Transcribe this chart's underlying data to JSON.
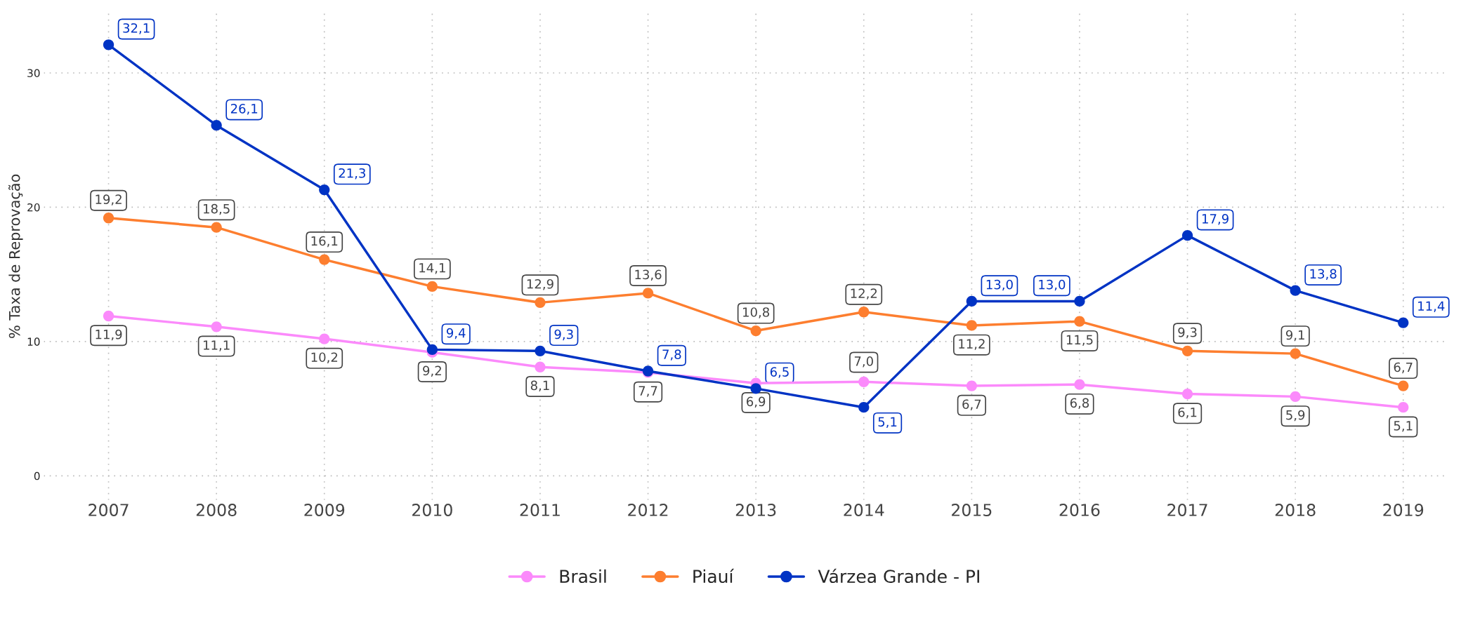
{
  "chart_data": {
    "type": "line",
    "ylabel": "% Taxa de Reprovação",
    "categories": [
      "2007",
      "2008",
      "2009",
      "2010",
      "2011",
      "2012",
      "2013",
      "2014",
      "2015",
      "2016",
      "2017",
      "2018",
      "2019"
    ],
    "series": [
      {
        "name": "Brasil",
        "color": "#fb8afb",
        "values": [
          11.9,
          11.1,
          10.2,
          9.2,
          8.1,
          7.7,
          6.9,
          7.0,
          6.7,
          6.8,
          6.1,
          5.9,
          5.1
        ],
        "value_labels": [
          "11,9",
          "11,1",
          "10,2",
          "9,2",
          "8,1",
          "7,7",
          "6,9",
          "7,0",
          "6,7",
          "6,8",
          "6,1",
          "5,9",
          "5,1"
        ]
      },
      {
        "name": "Piauí",
        "color": "#fd7e2f",
        "values": [
          19.2,
          18.5,
          16.1,
          14.1,
          12.9,
          13.6,
          10.8,
          12.2,
          11.2,
          11.5,
          9.3,
          9.1,
          6.7
        ],
        "value_labels": [
          "19,2",
          "18,5",
          "16,1",
          "14,1",
          "12,9",
          "13,6",
          "10,8",
          "12,2",
          "11,2",
          "11,5",
          "9,3",
          "9,1",
          "6,7"
        ]
      },
      {
        "name": "Várzea Grande - PI",
        "color": "#0033c4",
        "values": [
          32.1,
          26.1,
          21.3,
          9.4,
          9.3,
          7.8,
          6.5,
          5.1,
          13.0,
          13.0,
          17.9,
          13.8,
          11.4
        ],
        "value_labels": [
          "32,1",
          "26,1",
          "21,3",
          "9,4",
          "9,3",
          "7,8",
          "6,5",
          "5,1",
          "13,0",
          "13,0",
          "17,9",
          "13,8",
          "11,4"
        ]
      }
    ],
    "ylim": [
      -1.8,
      34.5
    ],
    "yticks": [
      0,
      10,
      20,
      30
    ],
    "grid": true,
    "legend": "bottom",
    "marker": "circle",
    "line_style": "solid"
  }
}
